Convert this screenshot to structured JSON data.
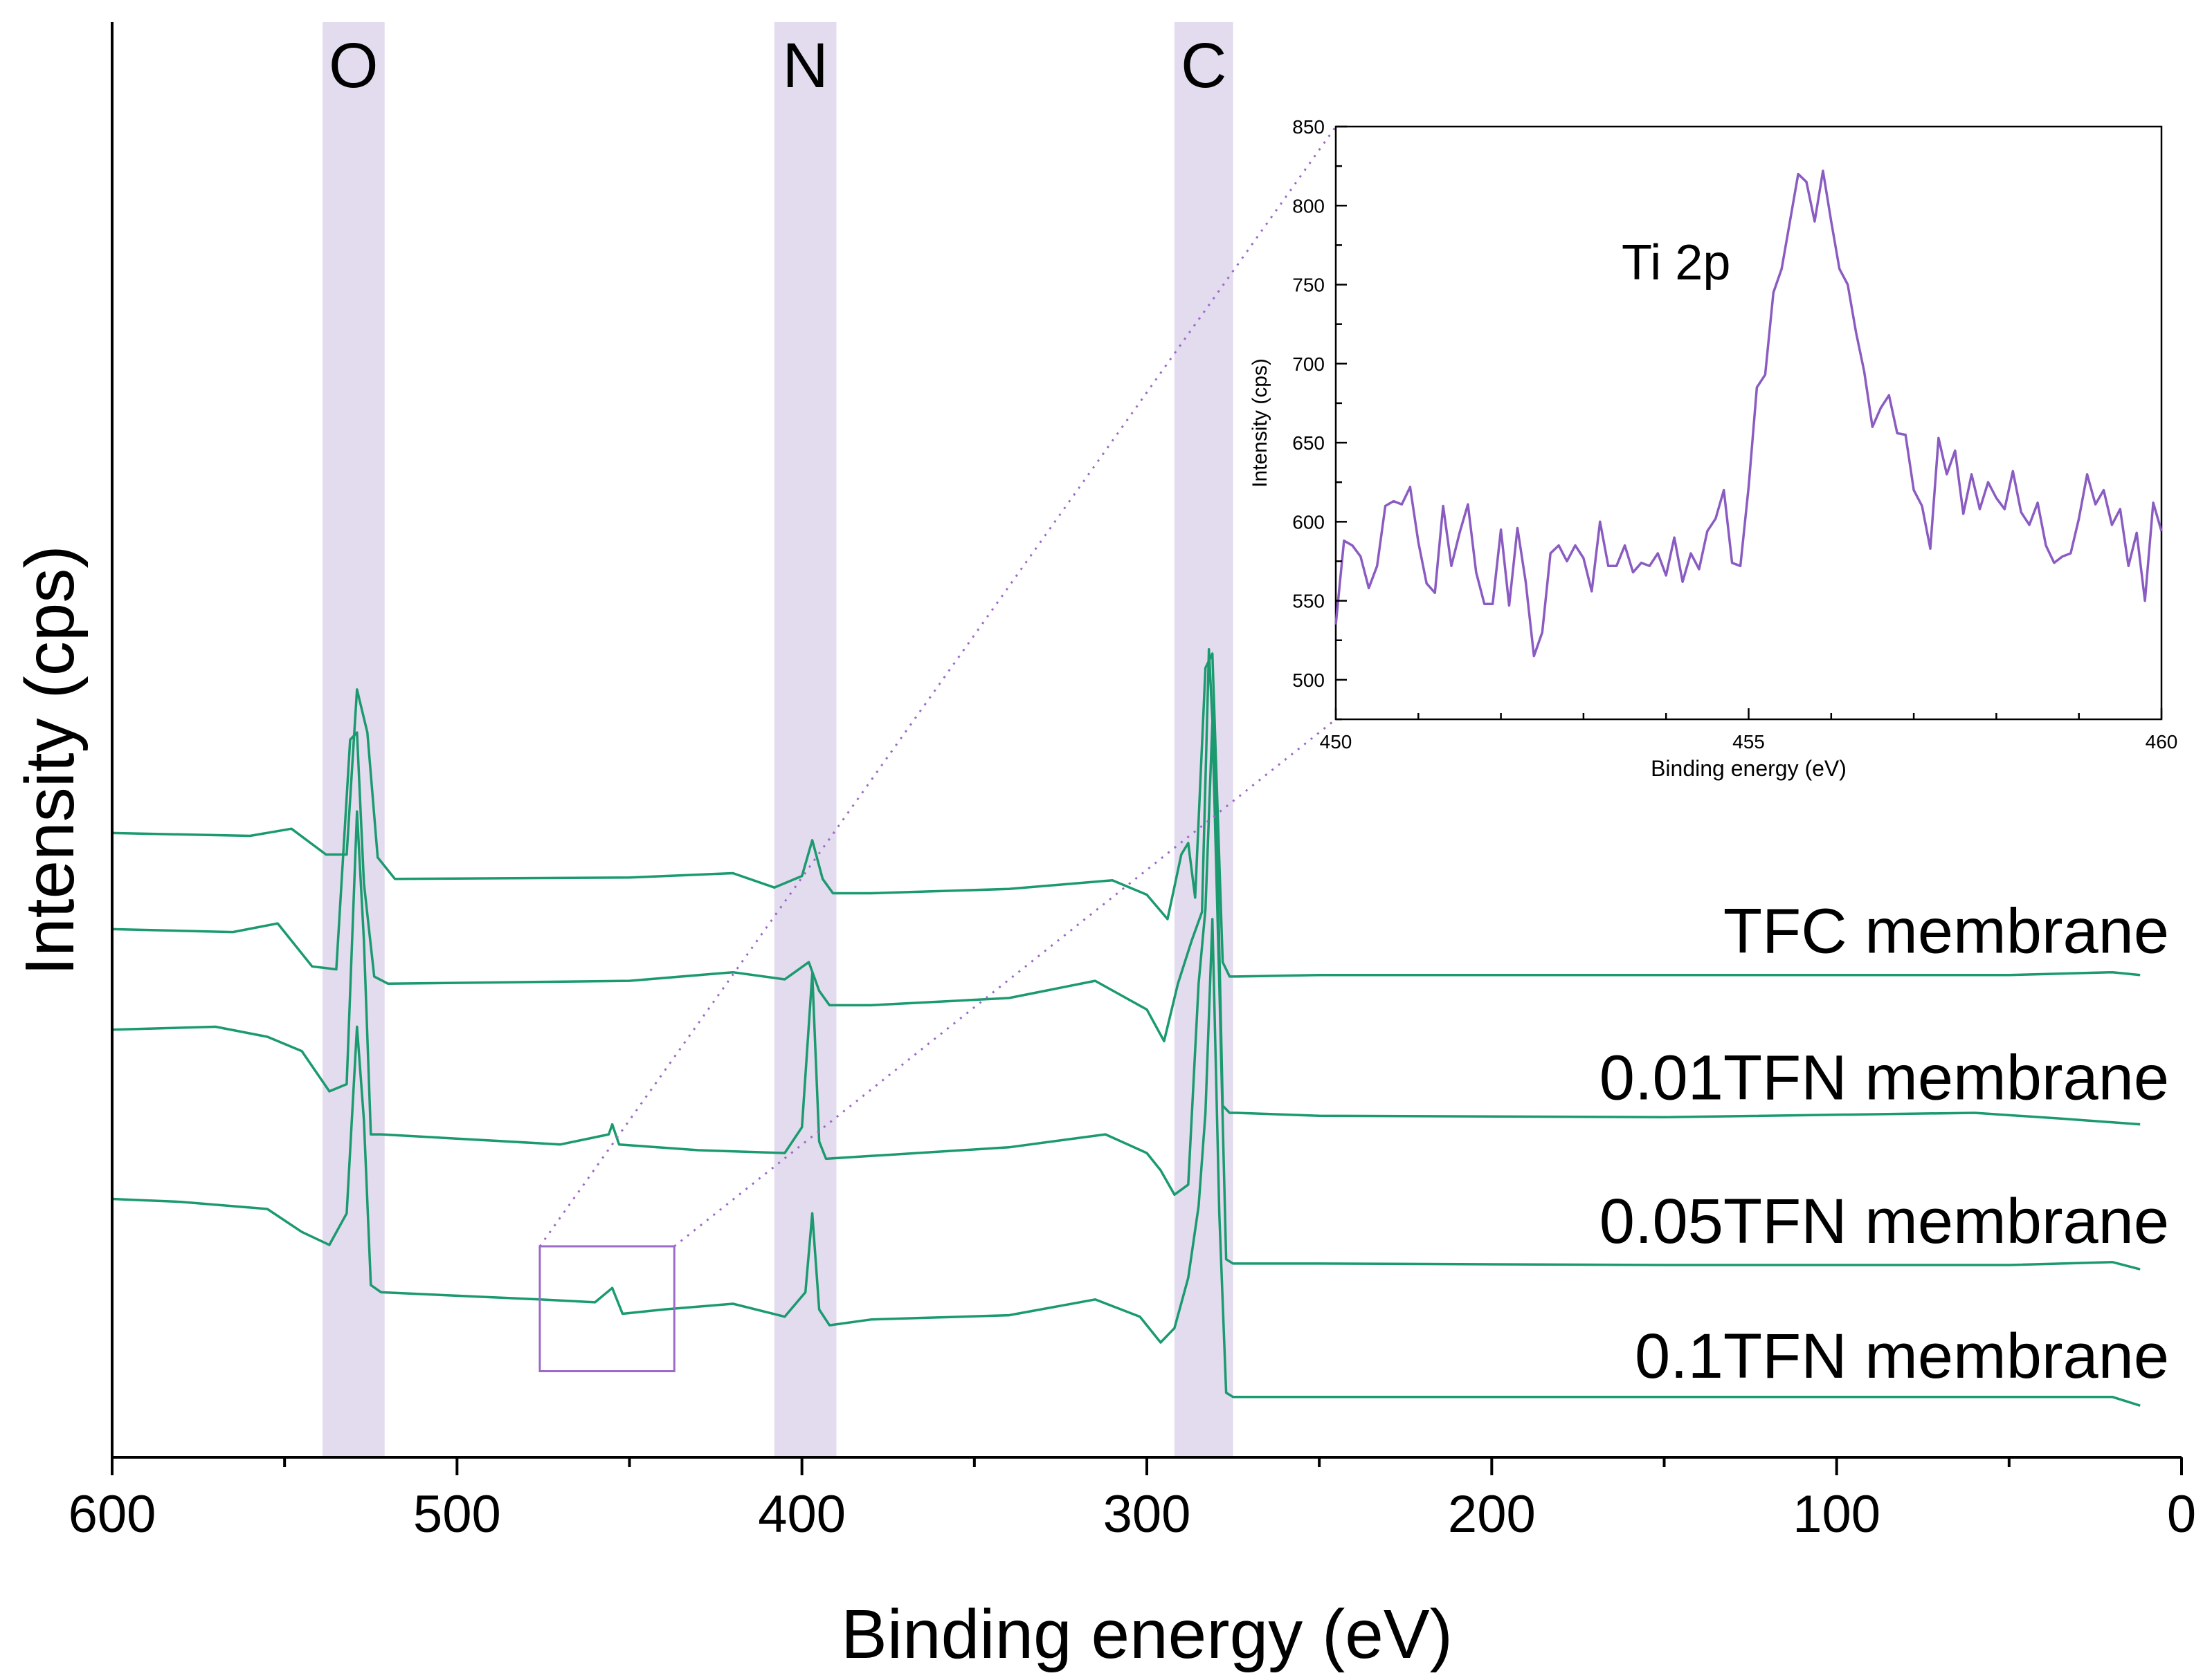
{
  "colors": {
    "spectrum": "#1a9a6e",
    "band": "#e3dbee",
    "inset_line": "#8a5cc2",
    "zoom_box": "#9b6bc8",
    "axis": "#000000"
  },
  "chart_data": [
    {
      "type": "line",
      "role": "main",
      "title": "",
      "xlabel": "Binding energy (eV)",
      "ylabel": "Intensity (cps)",
      "xlim": [
        600,
        0
      ],
      "xticks": [
        600,
        500,
        400,
        300,
        200,
        100,
        0
      ],
      "xtick_labels": [
        "600",
        "500",
        "400",
        "300",
        "200",
        "100",
        "0"
      ],
      "x_minor_step": 50,
      "y_axis_units": "arbitrary (stacked spectra, no tick labels)",
      "ylim": [
        0,
        1000
      ],
      "grid": false,
      "bands": [
        {
          "label": "O",
          "from": 539,
          "to": 521
        },
        {
          "label": "N",
          "from": 408,
          "to": 390
        },
        {
          "label": "C",
          "from": 292,
          "to": 275
        }
      ],
      "zoom_region": {
        "x_from": 476,
        "x_to": 437,
        "y_from": 60,
        "y_to": 147
      },
      "series": [
        {
          "name": "TFC membrane",
          "x": [
            600,
            560,
            548,
            538,
            532,
            529,
            526,
            523,
            518,
            450,
            420,
            408,
            400,
            397,
            394,
            391,
            380,
            340,
            310,
            300,
            294,
            290,
            288,
            286,
            283,
            281,
            278,
            276,
            274,
            250,
            150,
            50,
            20,
            12
          ],
          "y": [
            435,
            433,
            438,
            420,
            420,
            535,
            505,
            418,
            403,
            404,
            407,
            397,
            405,
            430,
            403,
            393,
            393,
            396,
            402,
            392,
            375,
            420,
            428,
            390,
            550,
            560,
            345,
            335,
            335,
            336,
            336,
            336,
            338,
            336
          ],
          "label_position": "right"
        },
        {
          "name": "0.01TFN membrane",
          "x": [
            600,
            565,
            552,
            542,
            535,
            531,
            529,
            527,
            524,
            520,
            450,
            420,
            405,
            398,
            395,
            392,
            380,
            340,
            315,
            300,
            295,
            291,
            287,
            284,
            282,
            280,
            278,
            276,
            274,
            250,
            150,
            60,
            35,
            12
          ],
          "y": [
            368,
            366,
            372,
            342,
            340,
            500,
            505,
            400,
            335,
            330,
            332,
            338,
            333,
            345,
            325,
            315,
            315,
            320,
            332,
            312,
            290,
            330,
            360,
            380,
            563,
            465,
            245,
            240,
            240,
            238,
            237,
            240,
            236,
            232
          ],
          "label_position": "right"
        },
        {
          "name": "0.05TFN membrane",
          "x": [
            600,
            570,
            555,
            545,
            537,
            532,
            529,
            527,
            525,
            522,
            470,
            456,
            455,
            453,
            430,
            405,
            400,
            397,
            395,
            393,
            380,
            340,
            312,
            300,
            296,
            292,
            288,
            285,
            283,
            281,
            279,
            277,
            275,
            250,
            150,
            50,
            20,
            12
          ],
          "y": [
            298,
            300,
            293,
            283,
            255,
            260,
            450,
            360,
            225,
            225,
            218,
            225,
            232,
            218,
            214,
            212,
            230,
            337,
            220,
            208,
            210,
            216,
            225,
            212,
            200,
            183,
            190,
            330,
            382,
            512,
            330,
            138,
            135,
            135,
            134,
            134,
            136,
            131
          ],
          "label_position": "right"
        },
        {
          "name": "0.1TFN membrane",
          "x": [
            600,
            580,
            555,
            545,
            537,
            532,
            529,
            527,
            525,
            522,
            476,
            460,
            455,
            452,
            440,
            420,
            405,
            399,
            397,
            395,
            392,
            380,
            340,
            315,
            302,
            296,
            292,
            288,
            285,
            283,
            281,
            279,
            277,
            275,
            250,
            150,
            50,
            20,
            12
          ],
          "y": [
            180,
            178,
            173,
            157,
            148,
            170,
            300,
            235,
            120,
            115,
            110,
            108,
            118,
            100,
            103,
            107,
            98,
            115,
            170,
            103,
            92,
            96,
            99,
            110,
            98,
            80,
            90,
            125,
            175,
            240,
            375,
            170,
            45,
            42,
            42,
            42,
            42,
            42,
            36
          ],
          "label_position": "right"
        }
      ]
    },
    {
      "type": "line",
      "role": "inset",
      "title": "",
      "annotation": "Ti 2p",
      "xlabel": "Binding energy (eV)",
      "ylabel": "Intensity (cps)",
      "xlim": [
        450,
        460
      ],
      "ylim": [
        475,
        850
      ],
      "xticks": [
        450,
        455,
        460
      ],
      "xtick_labels": [
        "450",
        "455",
        "460"
      ],
      "yticks": [
        500,
        550,
        600,
        650,
        700,
        750,
        800,
        850
      ],
      "ytick_labels": [
        "500",
        "550",
        "600",
        "650",
        "700",
        "750",
        "800",
        "850"
      ],
      "grid": false,
      "series": [
        {
          "name": "Ti 2p",
          "x": [
            450.0,
            450.1,
            450.2,
            450.3,
            450.4,
            450.5,
            450.6,
            450.7,
            450.8,
            450.9,
            451.0,
            451.1,
            451.2,
            451.3,
            451.4,
            451.5,
            451.6,
            451.7,
            451.8,
            451.9,
            452.0,
            452.1,
            452.2,
            452.3,
            452.4,
            452.5,
            452.6,
            452.7,
            452.8,
            452.9,
            453.0,
            453.1,
            453.2,
            453.3,
            453.4,
            453.5,
            453.6,
            453.7,
            453.8,
            453.9,
            454.0,
            454.1,
            454.2,
            454.3,
            454.4,
            454.5,
            454.6,
            454.7,
            454.8,
            454.9,
            455.0,
            455.1,
            455.2,
            455.3,
            455.4,
            455.5,
            455.6,
            455.7,
            455.8,
            455.9,
            456.0,
            456.1,
            456.2,
            456.3,
            456.4,
            456.5,
            456.6,
            456.7,
            456.8,
            456.9,
            457.0,
            457.1,
            457.2,
            457.3,
            457.4,
            457.5,
            457.6,
            457.7,
            457.8,
            457.9,
            458.0,
            458.1,
            458.2,
            458.3,
            458.4,
            458.5,
            458.6,
            458.7,
            458.8,
            458.9,
            459.0,
            459.1,
            459.2,
            459.3,
            459.4,
            459.5,
            459.6,
            459.7,
            459.8,
            459.9,
            460.0
          ],
          "y": [
            535,
            588,
            585,
            578,
            558,
            572,
            610,
            613,
            611,
            622,
            587,
            561,
            555,
            610,
            572,
            593,
            611,
            568,
            548,
            548,
            595,
            547,
            596,
            562,
            515,
            530,
            580,
            585,
            575,
            585,
            577,
            556,
            600,
            572,
            572,
            585,
            568,
            574,
            572,
            580,
            566,
            590,
            562,
            580,
            570,
            594,
            602,
            620,
            574,
            572,
            622,
            685,
            693,
            745,
            760,
            790,
            820,
            815,
            790,
            822,
            790,
            760,
            750,
            720,
            695,
            660,
            672,
            680,
            656,
            655,
            620,
            610,
            583,
            653,
            630,
            645,
            605,
            630,
            608,
            625,
            615,
            608,
            632,
            606,
            598,
            612,
            585,
            574,
            578,
            580,
            602,
            630,
            611,
            620,
            598,
            608,
            572,
            593,
            550,
            612,
            594
          ]
        }
      ]
    }
  ]
}
